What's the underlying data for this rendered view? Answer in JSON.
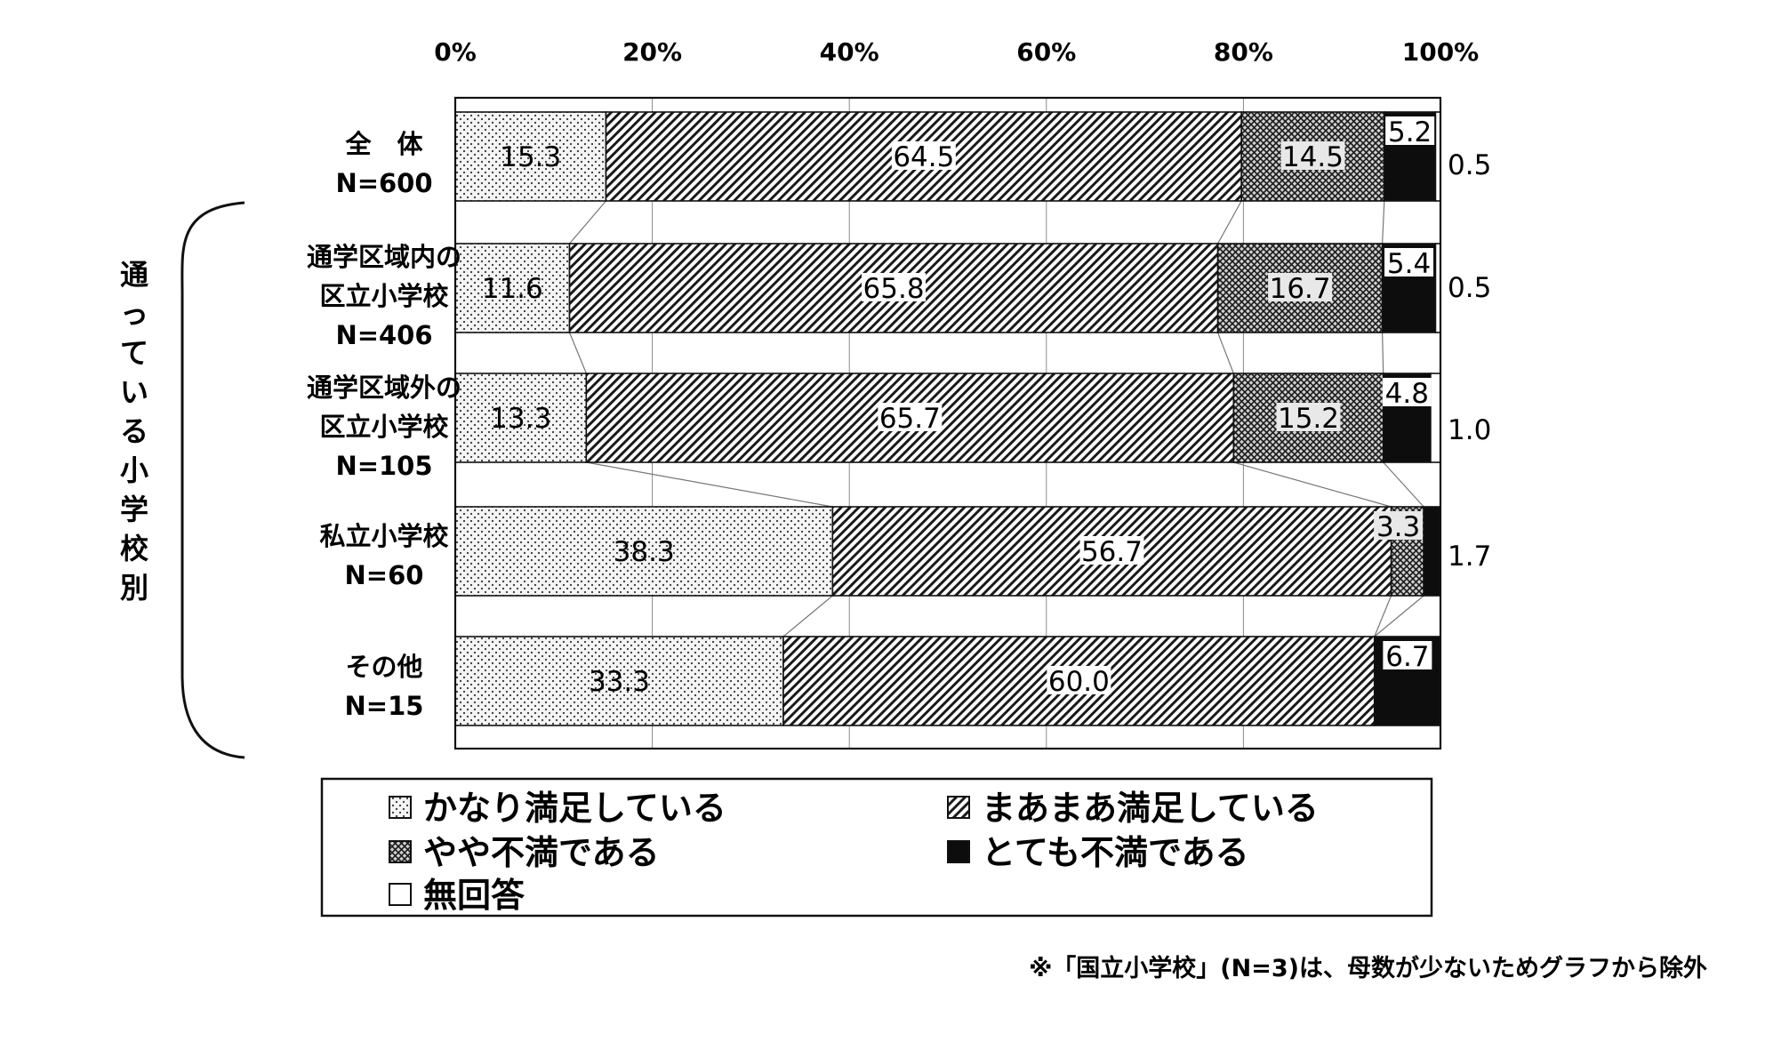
{
  "chart_data": {
    "type": "bar",
    "orientation": "horizontal",
    "stacked": true,
    "percent_axis_ticks": [
      "0%",
      "20%",
      "40%",
      "60%",
      "80%",
      "100%"
    ],
    "xlim": [
      0,
      100
    ],
    "categories": [
      {
        "lines": [
          "全　体",
          "N=600"
        ]
      },
      {
        "lines": [
          "通学区域内の",
          "区立小学校",
          "N=406"
        ]
      },
      {
        "lines": [
          "通学区域外の",
          "区立小学校",
          "N=105"
        ]
      },
      {
        "lines": [
          "私立小学校",
          "N=60"
        ]
      },
      {
        "lines": [
          "その他",
          "N=15"
        ]
      }
    ],
    "series": [
      {
        "name": "かなり満足している",
        "pattern": "dots",
        "values": [
          15.3,
          11.6,
          13.3,
          38.3,
          33.3
        ],
        "labels": [
          "15.3",
          "11.6",
          "13.3",
          "38.3",
          "33.3"
        ]
      },
      {
        "name": "まあまあ満足している",
        "pattern": "diagonal",
        "values": [
          64.5,
          65.8,
          65.7,
          56.7,
          60.0
        ],
        "labels": [
          "64.5",
          "65.8",
          "65.7",
          "56.7",
          "60.0"
        ]
      },
      {
        "name": "やや不満である",
        "pattern": "crosshatch",
        "values": [
          14.5,
          16.7,
          15.2,
          3.3,
          0
        ],
        "labels": [
          "14.5",
          "16.7",
          "15.2",
          "3.3",
          ""
        ]
      },
      {
        "name": "とても不満である",
        "pattern": "black",
        "values": [
          5.2,
          5.4,
          4.8,
          1.7,
          6.7
        ],
        "labels": [
          "5.2",
          "5.4",
          "4.8",
          "",
          "6.7"
        ]
      },
      {
        "name": "無回答",
        "pattern": "white",
        "values": [
          0.5,
          0.5,
          1.0,
          0,
          0
        ],
        "labels": [
          "",
          "",
          "",
          "",
          ""
        ]
      }
    ],
    "side_labels": [
      "0.5",
      "0.5",
      "1.0",
      "1.7",
      ""
    ],
    "group_label": "通っている小学校別",
    "legend_placement": "bottom",
    "footnote": "※「国立小学校」(N=3)は、母数が少ないためグラフから除外",
    "colors": {
      "ink": "#1a1a1a",
      "dots_bg": "#f4f4f4",
      "crosshatch_bg": "#cfcfcf",
      "solid": "#0d0d0d"
    }
  }
}
